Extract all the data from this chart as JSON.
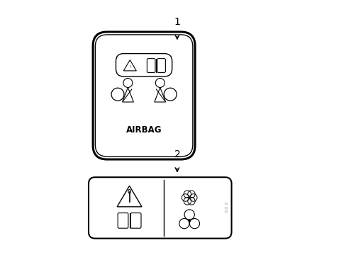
{
  "bg_color": "#ffffff",
  "line_color": "#000000",
  "label1": "1",
  "label2": "2",
  "airbag_text": "AIRBAG"
}
